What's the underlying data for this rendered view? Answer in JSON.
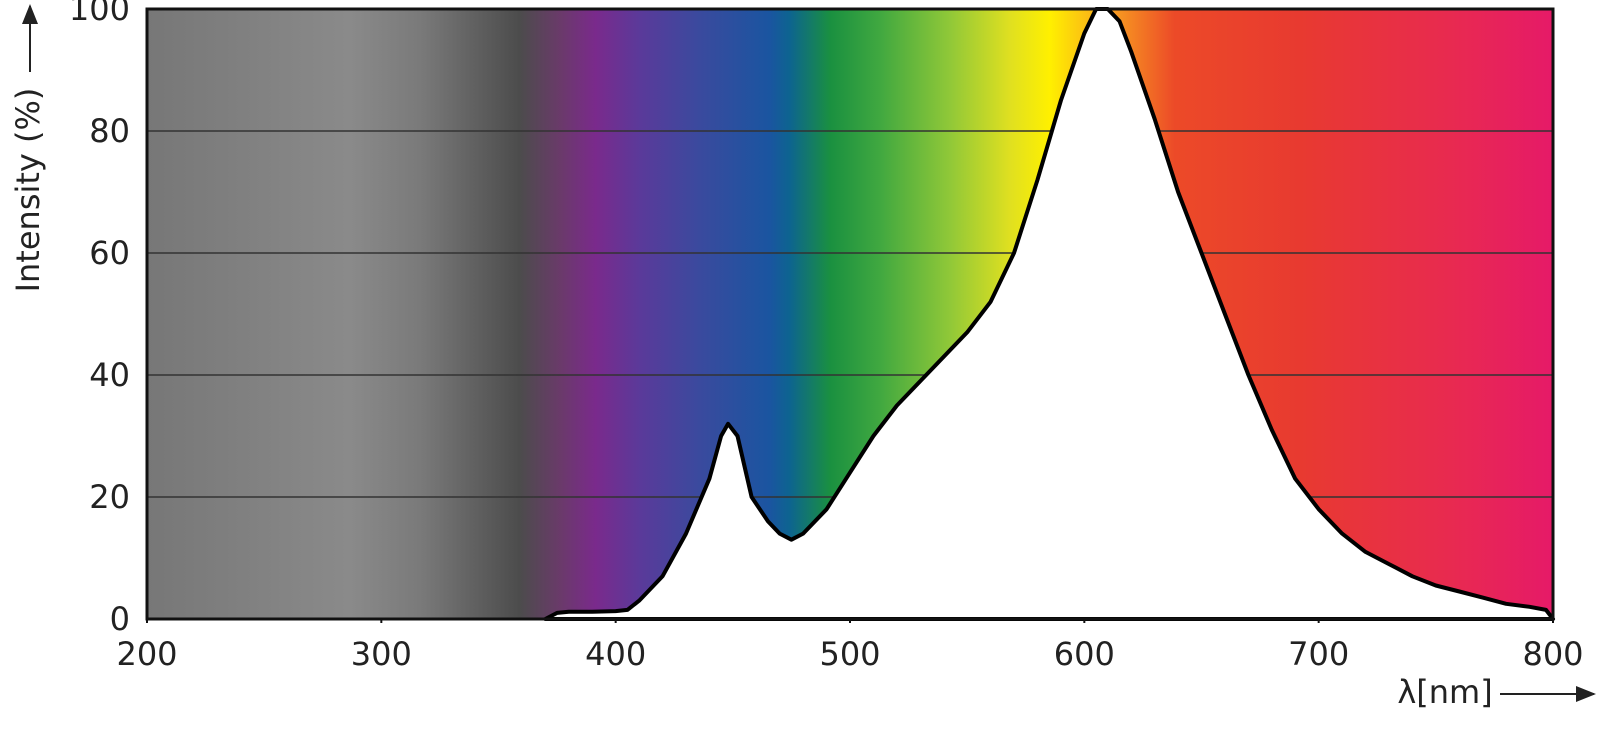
{
  "chart_data": {
    "type": "area",
    "xlabel": "λ[nm]",
    "ylabel": "Intensity (%)",
    "x": [
      370,
      375,
      380,
      390,
      400,
      405,
      410,
      420,
      430,
      440,
      445,
      448,
      452,
      458,
      465,
      470,
      475,
      480,
      490,
      500,
      510,
      520,
      530,
      540,
      550,
      560,
      570,
      580,
      590,
      600,
      605,
      610,
      615,
      620,
      630,
      640,
      650,
      660,
      670,
      680,
      690,
      700,
      710,
      720,
      730,
      740,
      750,
      760,
      770,
      780,
      790,
      797,
      800
    ],
    "values": [
      0,
      1,
      1.2,
      1.2,
      1.3,
      1.5,
      3,
      7,
      14,
      23,
      30,
      32,
      30,
      20,
      16,
      14,
      13,
      14,
      18,
      24,
      30,
      35,
      39,
      43,
      47,
      52,
      60,
      72,
      85,
      96,
      100,
      100,
      98,
      93,
      82,
      70,
      60,
      50,
      40,
      31,
      23,
      18,
      14,
      11,
      9,
      7,
      5.5,
      4.5,
      3.5,
      2.5,
      2,
      1.5,
      0
    ],
    "color": "#000000",
    "fill_color": "#ffffff",
    "xlim": [
      200,
      800
    ],
    "xticks": [
      200,
      300,
      400,
      500,
      600,
      700,
      800
    ],
    "ylim": [
      0,
      100
    ],
    "yticks": [
      0,
      20,
      40,
      60,
      80,
      100
    ],
    "grid": true
  }
}
